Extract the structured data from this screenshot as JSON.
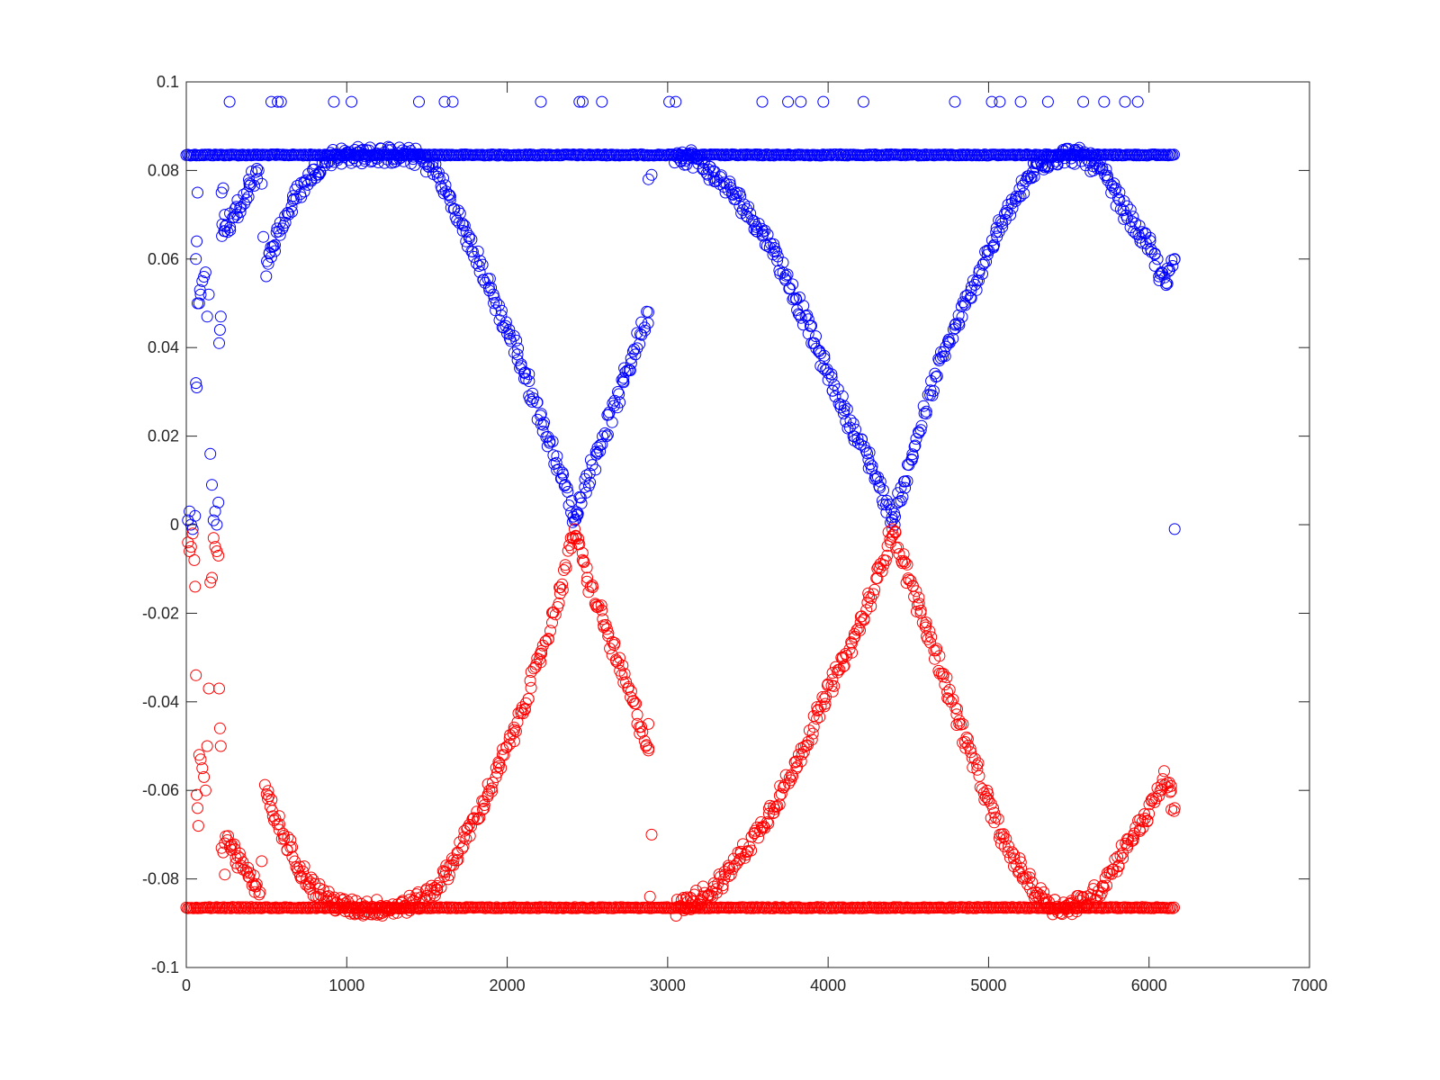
{
  "chart_data": {
    "type": "scatter",
    "title": "",
    "xlabel": "",
    "ylabel": "",
    "xlim": [
      0,
      7000
    ],
    "ylim": [
      -0.1,
      0.1
    ],
    "grid": false,
    "legend": "none",
    "marker": "open-circle",
    "x_ticks": [
      "0",
      "1000",
      "2000",
      "3000",
      "4000",
      "5000",
      "6000",
      "7000"
    ],
    "y_ticks": [
      "-0.1",
      "-0.08",
      "-0.06",
      "-0.04",
      "-0.02",
      "0",
      "0.02",
      "0.04",
      "0.06",
      "0.08",
      "0.1"
    ],
    "series": [
      {
        "color": "#0000ff",
        "segments": [
          {
            "kind": "flat",
            "x_start": 0,
            "x_end": 6160,
            "y": 0.0835
          },
          {
            "kind": "curve",
            "points": [
              [
                490,
                0.058
              ],
              [
                600,
                0.068
              ],
              [
                700,
                0.075
              ],
              [
                800,
                0.08
              ],
              [
                900,
                0.083
              ],
              [
                1000,
                0.0835
              ],
              [
                1100,
                0.0835
              ],
              [
                1200,
                0.0835
              ],
              [
                1300,
                0.0835
              ],
              [
                1450,
                0.083
              ],
              [
                1550,
                0.08
              ],
              [
                1650,
                0.073
              ],
              [
                1750,
                0.065
              ],
              [
                1850,
                0.057
              ],
              [
                1950,
                0.048
              ],
              [
                2050,
                0.04
              ],
              [
                2150,
                0.03
              ],
              [
                2250,
                0.02
              ],
              [
                2350,
                0.01
              ],
              [
                2420,
                0.001
              ]
            ]
          },
          {
            "kind": "curve",
            "points": [
              [
                2420,
                0.001
              ],
              [
                2500,
                0.01
              ],
              [
                2600,
                0.02
              ],
              [
                2700,
                0.03
              ],
              [
                2800,
                0.04
              ],
              [
                2880,
                0.048
              ]
            ]
          },
          {
            "kind": "curve",
            "points": [
              [
                3050,
                0.0835
              ],
              [
                3150,
                0.083
              ],
              [
                3250,
                0.08
              ],
              [
                3350,
                0.077
              ],
              [
                3450,
                0.073
              ],
              [
                3550,
                0.068
              ],
              [
                3650,
                0.063
              ],
              [
                3750,
                0.055
              ],
              [
                3850,
                0.047
              ],
              [
                3950,
                0.038
              ],
              [
                4050,
                0.03
              ],
              [
                4150,
                0.022
              ],
              [
                4250,
                0.015
              ],
              [
                4350,
                0.006
              ],
              [
                4400,
                0.001
              ]
            ]
          },
          {
            "kind": "curve",
            "points": [
              [
                4400,
                0.001
              ],
              [
                4500,
                0.012
              ],
              [
                4600,
                0.025
              ],
              [
                4700,
                0.037
              ],
              [
                4800,
                0.045
              ],
              [
                4900,
                0.053
              ],
              [
                5000,
                0.062
              ],
              [
                5100,
                0.069
              ],
              [
                5200,
                0.075
              ],
              [
                5300,
                0.081
              ],
              [
                5400,
                0.083
              ],
              [
                5500,
                0.0835
              ],
              [
                5600,
                0.083
              ],
              [
                5700,
                0.08
              ],
              [
                5800,
                0.074
              ],
              [
                5900,
                0.068
              ],
              [
                6000,
                0.063
              ],
              [
                6100,
                0.054
              ],
              [
                6160,
                0.06
              ]
            ]
          },
          {
            "kind": "curve",
            "points": [
              [
                220,
                0.066
              ],
              [
                280,
                0.069
              ],
              [
                340,
                0.073
              ],
              [
                400,
                0.077
              ],
              [
                450,
                0.08
              ]
            ]
          },
          {
            "kind": "points",
            "points": [
              [
                10,
                0.001
              ],
              [
                20,
                0.003
              ],
              [
                30,
                0.0
              ],
              [
                40,
                -0.001
              ],
              [
                55,
                0.002
              ],
              [
                60,
                0.032
              ],
              [
                65,
                0.031
              ],
              [
                70,
                0.05
              ],
              [
                80,
                0.05
              ],
              [
                85,
                0.053
              ],
              [
                90,
                0.052
              ],
              [
                100,
                0.055
              ],
              [
                110,
                0.056
              ],
              [
                120,
                0.057
              ],
              [
                130,
                0.047
              ],
              [
                140,
                0.052
              ],
              [
                150,
                0.016
              ],
              [
                160,
                0.009
              ],
              [
                170,
                0.001
              ],
              [
                180,
                0.003
              ],
              [
                190,
                0.0
              ],
              [
                200,
                0.005
              ],
              [
                205,
                0.041
              ],
              [
                210,
                0.044
              ],
              [
                215,
                0.047
              ],
              [
                60,
                0.06
              ],
              [
                65,
                0.064
              ],
              [
                70,
                0.075
              ],
              [
                220,
                0.075
              ],
              [
                230,
                0.076
              ],
              [
                240,
                0.07
              ],
              [
                270,
                0.0955
              ],
              [
                530,
                0.0955
              ],
              [
                570,
                0.0955
              ],
              [
                590,
                0.0955
              ],
              [
                920,
                0.0955
              ],
              [
                1030,
                0.0955
              ],
              [
                1450,
                0.0955
              ],
              [
                1610,
                0.0955
              ],
              [
                1660,
                0.0955
              ],
              [
                2210,
                0.0955
              ],
              [
                2450,
                0.0955
              ],
              [
                2470,
                0.0955
              ],
              [
                2590,
                0.0955
              ],
              [
                3010,
                0.0955
              ],
              [
                3050,
                0.0955
              ],
              [
                3590,
                0.0955
              ],
              [
                3750,
                0.0955
              ],
              [
                3830,
                0.0955
              ],
              [
                3970,
                0.0955
              ],
              [
                4220,
                0.0955
              ],
              [
                4790,
                0.0955
              ],
              [
                5020,
                0.0955
              ],
              [
                5070,
                0.0955
              ],
              [
                5200,
                0.0955
              ],
              [
                5370,
                0.0955
              ],
              [
                5590,
                0.0955
              ],
              [
                5720,
                0.0955
              ],
              [
                5850,
                0.0955
              ],
              [
                5930,
                0.0955
              ],
              [
                2880,
                0.078
              ],
              [
                2900,
                0.079
              ],
              [
                470,
                0.077
              ],
              [
                480,
                0.065
              ],
              [
                6160,
                -0.001
              ]
            ]
          }
        ]
      },
      {
        "color": "#ff0000",
        "segments": [
          {
            "kind": "flat",
            "x_start": 0,
            "x_end": 6160,
            "y": -0.0865
          },
          {
            "kind": "curve",
            "points": [
              [
                490,
                -0.06
              ],
              [
                600,
                -0.07
              ],
              [
                700,
                -0.077
              ],
              [
                800,
                -0.082
              ],
              [
                900,
                -0.085
              ],
              [
                1000,
                -0.0865
              ],
              [
                1100,
                -0.0865
              ],
              [
                1200,
                -0.0865
              ],
              [
                1300,
                -0.0865
              ],
              [
                1450,
                -0.085
              ],
              [
                1550,
                -0.082
              ],
              [
                1650,
                -0.077
              ],
              [
                1750,
                -0.07
              ],
              [
                1850,
                -0.063
              ],
              [
                1950,
                -0.055
              ],
              [
                2050,
                -0.046
              ],
              [
                2150,
                -0.036
              ],
              [
                2250,
                -0.025
              ],
              [
                2350,
                -0.012
              ],
              [
                2420,
                -0.001
              ]
            ]
          },
          {
            "kind": "curve",
            "points": [
              [
                2420,
                -0.001
              ],
              [
                2500,
                -0.012
              ],
              [
                2600,
                -0.022
              ],
              [
                2700,
                -0.032
              ],
              [
                2800,
                -0.042
              ],
              [
                2880,
                -0.051
              ]
            ]
          },
          {
            "kind": "curve",
            "points": [
              [
                3050,
                -0.0865
              ],
              [
                3150,
                -0.085
              ],
              [
                3250,
                -0.083
              ],
              [
                3350,
                -0.08
              ],
              [
                3450,
                -0.075
              ],
              [
                3550,
                -0.07
              ],
              [
                3650,
                -0.064
              ],
              [
                3750,
                -0.058
              ],
              [
                3850,
                -0.05
              ],
              [
                3950,
                -0.042
              ],
              [
                4050,
                -0.034
              ],
              [
                4150,
                -0.027
              ],
              [
                4250,
                -0.018
              ],
              [
                4350,
                -0.007
              ],
              [
                4400,
                -0.001
              ]
            ]
          },
          {
            "kind": "curve",
            "points": [
              [
                4400,
                -0.001
              ],
              [
                4500,
                -0.012
              ],
              [
                4600,
                -0.022
              ],
              [
                4700,
                -0.032
              ],
              [
                4800,
                -0.043
              ],
              [
                4900,
                -0.053
              ],
              [
                5000,
                -0.063
              ],
              [
                5100,
                -0.072
              ],
              [
                5200,
                -0.078
              ],
              [
                5300,
                -0.083
              ],
              [
                5400,
                -0.086
              ],
              [
                5500,
                -0.0865
              ],
              [
                5600,
                -0.085
              ],
              [
                5700,
                -0.082
              ],
              [
                5800,
                -0.076
              ],
              [
                5900,
                -0.07
              ],
              [
                6000,
                -0.065
              ],
              [
                6100,
                -0.057
              ],
              [
                6160,
                -0.064
              ]
            ]
          },
          {
            "kind": "curve",
            "points": [
              [
                240,
                -0.07
              ],
              [
                300,
                -0.074
              ],
              [
                360,
                -0.078
              ],
              [
                420,
                -0.081
              ],
              [
                460,
                -0.083
              ]
            ]
          },
          {
            "kind": "points",
            "points": [
              [
                10,
                -0.004
              ],
              [
                20,
                -0.006
              ],
              [
                30,
                -0.005
              ],
              [
                40,
                -0.002
              ],
              [
                50,
                -0.008
              ],
              [
                55,
                -0.014
              ],
              [
                60,
                -0.034
              ],
              [
                65,
                -0.061
              ],
              [
                70,
                -0.064
              ],
              [
                75,
                -0.068
              ],
              [
                80,
                -0.052
              ],
              [
                90,
                -0.053
              ],
              [
                100,
                -0.055
              ],
              [
                110,
                -0.057
              ],
              [
                120,
                -0.06
              ],
              [
                130,
                -0.05
              ],
              [
                140,
                -0.037
              ],
              [
                150,
                -0.013
              ],
              [
                160,
                -0.012
              ],
              [
                170,
                -0.003
              ],
              [
                180,
                -0.005
              ],
              [
                190,
                -0.006
              ],
              [
                200,
                -0.007
              ],
              [
                205,
                -0.037
              ],
              [
                210,
                -0.046
              ],
              [
                215,
                -0.05
              ],
              [
                220,
                -0.073
              ],
              [
                230,
                -0.074
              ],
              [
                240,
                -0.079
              ],
              [
                470,
                -0.076
              ],
              [
                2880,
                -0.045
              ],
              [
                2900,
                -0.07
              ],
              [
                2890,
                -0.084
              ]
            ]
          }
        ]
      }
    ]
  }
}
